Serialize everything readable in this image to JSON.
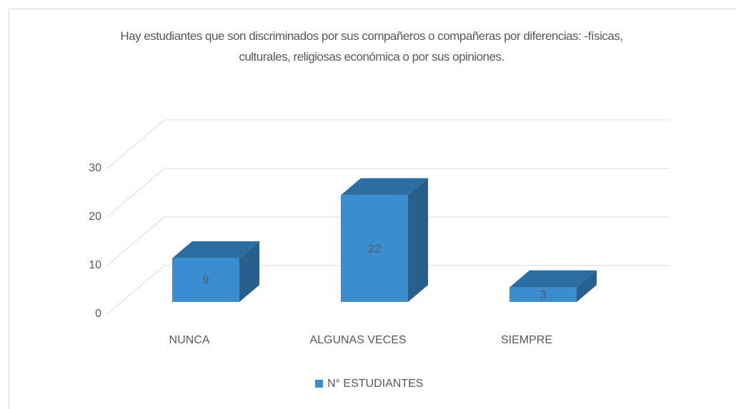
{
  "chart_data": {
    "type": "bar3d",
    "title": "Hay estudiantes que son discriminados por sus compañeros o compañeras por diferencias:  -físicas, culturales, religiosas económica o por sus opiniones.",
    "categories": [
      "NUNCA",
      "ALGUNAS VECES",
      "SIEMPRE"
    ],
    "series": [
      {
        "name": "N° ESTUDIANTES",
        "color": "#3a8dd0",
        "values": [
          9,
          22,
          3
        ]
      }
    ],
    "ylim": [
      0,
      30
    ],
    "yticks": [
      0,
      10,
      20,
      30
    ],
    "grid": true,
    "legend": "bottom"
  }
}
